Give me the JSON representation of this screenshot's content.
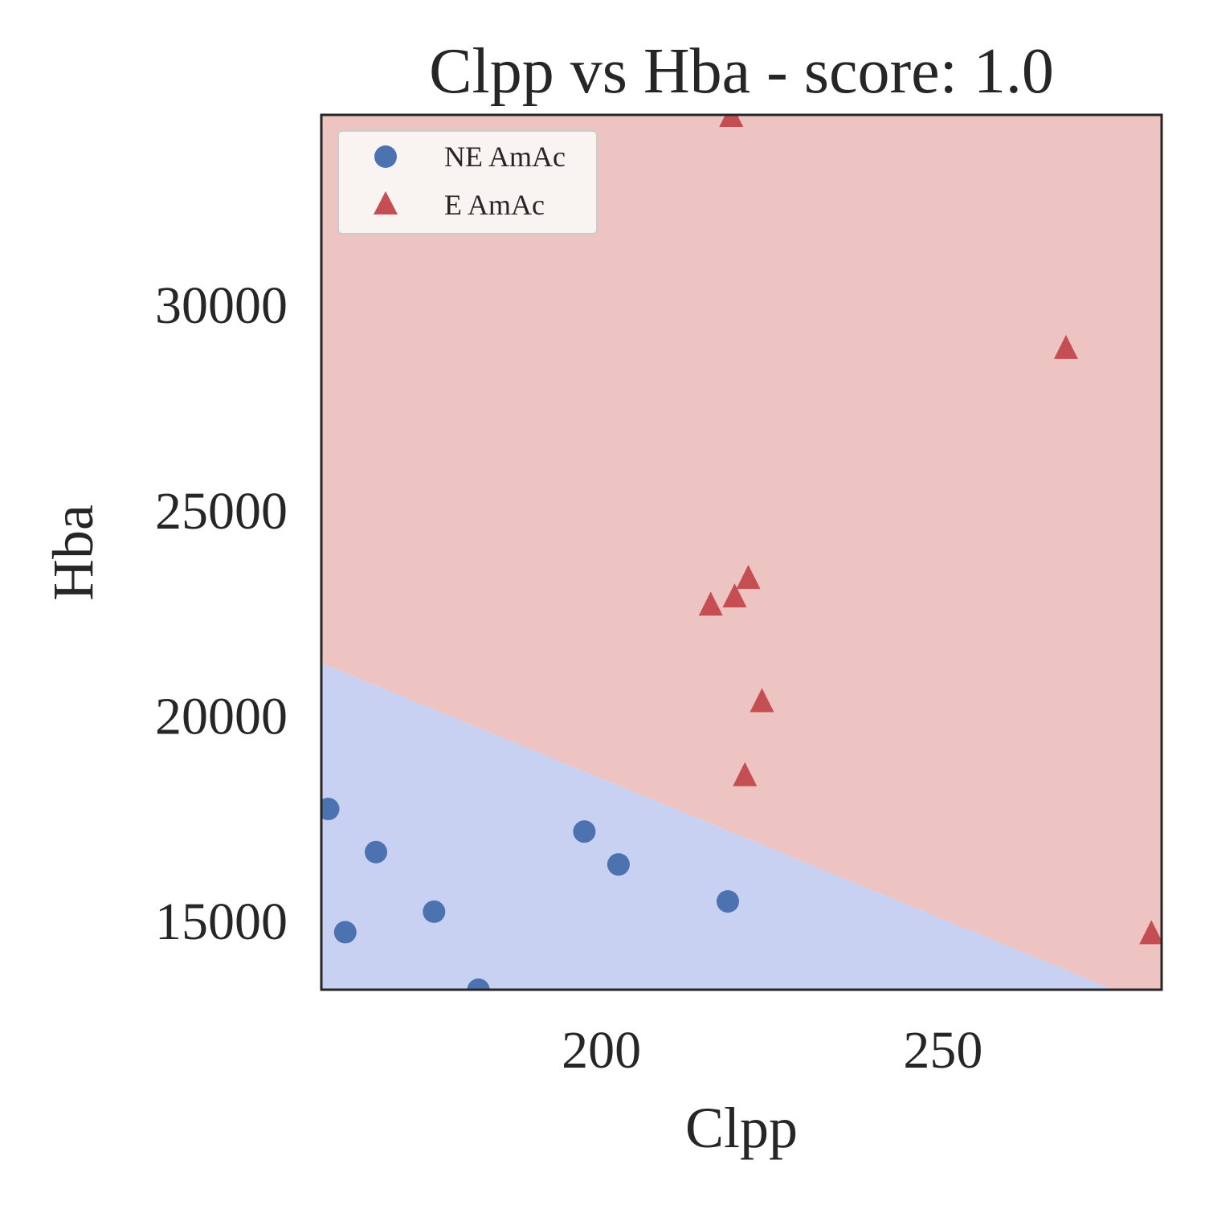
{
  "chart_data": {
    "type": "scatter",
    "title": "Clpp vs Hba - score: 1.0",
    "xlabel": "Clpp",
    "ylabel": "Hba",
    "xlim": [
      159,
      282
    ],
    "ylim": [
      13300,
      34600
    ],
    "xticks": [
      200,
      250
    ],
    "yticks": [
      15000,
      20000,
      25000,
      30000
    ],
    "grid": false,
    "legend_position": "top-left",
    "decision_boundary": {
      "points": [
        [
          159,
          21250
        ],
        [
          275,
          13300
        ]
      ],
      "region_above": "E AmAc",
      "region_below": "NE AmAc",
      "color_above": "#eec4c3",
      "color_below": "#c8d1f2"
    },
    "series": [
      {
        "name": "NE AmAc",
        "marker": "circle",
        "color": "#4c72b0",
        "points": [
          [
            160,
            17700
          ],
          [
            162.5,
            14700
          ],
          [
            167,
            16650
          ],
          [
            175.5,
            15200
          ],
          [
            182,
            13300
          ],
          [
            197.5,
            17150
          ],
          [
            202.5,
            16350
          ],
          [
            218.5,
            15450
          ]
        ]
      },
      {
        "name": "E AmAc",
        "marker": "triangle",
        "color": "#c44e52",
        "points": [
          [
            219,
            34600
          ],
          [
            216,
            22700
          ],
          [
            219.5,
            22900
          ],
          [
            221.5,
            23350
          ],
          [
            223.5,
            20350
          ],
          [
            221,
            18550
          ],
          [
            268,
            28950
          ],
          [
            280.5,
            14700
          ]
        ]
      }
    ]
  }
}
